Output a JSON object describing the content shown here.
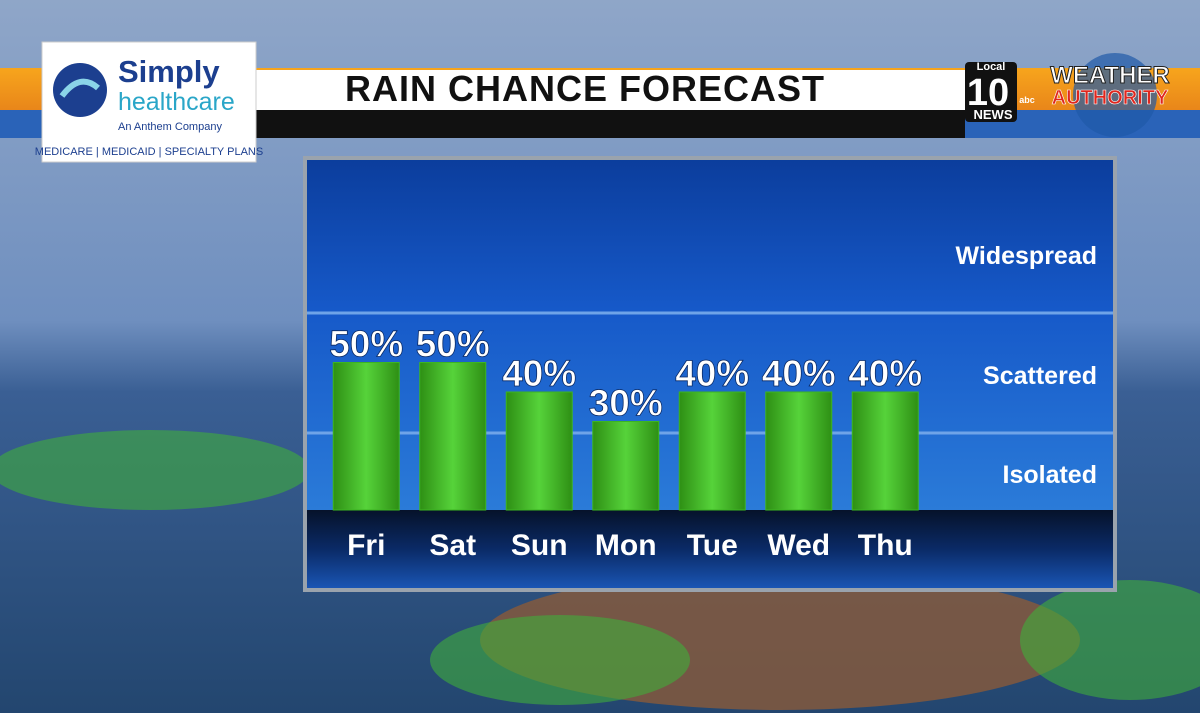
{
  "branding": {
    "sponsor": {
      "name_line1": "Simply",
      "name_line2": "healthcare",
      "tagline": "An Anthem Company",
      "plans": "MEDICARE | MEDICAID | SPECIALTY PLANS"
    },
    "station": {
      "local": "Local",
      "number": "10",
      "network": "abc",
      "news": "NEWS",
      "brand_line1": "WEATHER",
      "brand_line2": "AUTHORITY"
    }
  },
  "chart_data": {
    "type": "bar",
    "title": "RAIN CHANCE FORECAST",
    "categories": [
      "Fri",
      "Sat",
      "Sun",
      "Mon",
      "Tue",
      "Wed",
      "Thu"
    ],
    "values": [
      50,
      50,
      40,
      30,
      40,
      40,
      40
    ],
    "value_labels": [
      "50%",
      "50%",
      "40%",
      "30%",
      "40%",
      "40%",
      "40%"
    ],
    "color": "#3cb521",
    "zones": [
      "Widespread",
      "Scattered",
      "Isolated"
    ]
  }
}
